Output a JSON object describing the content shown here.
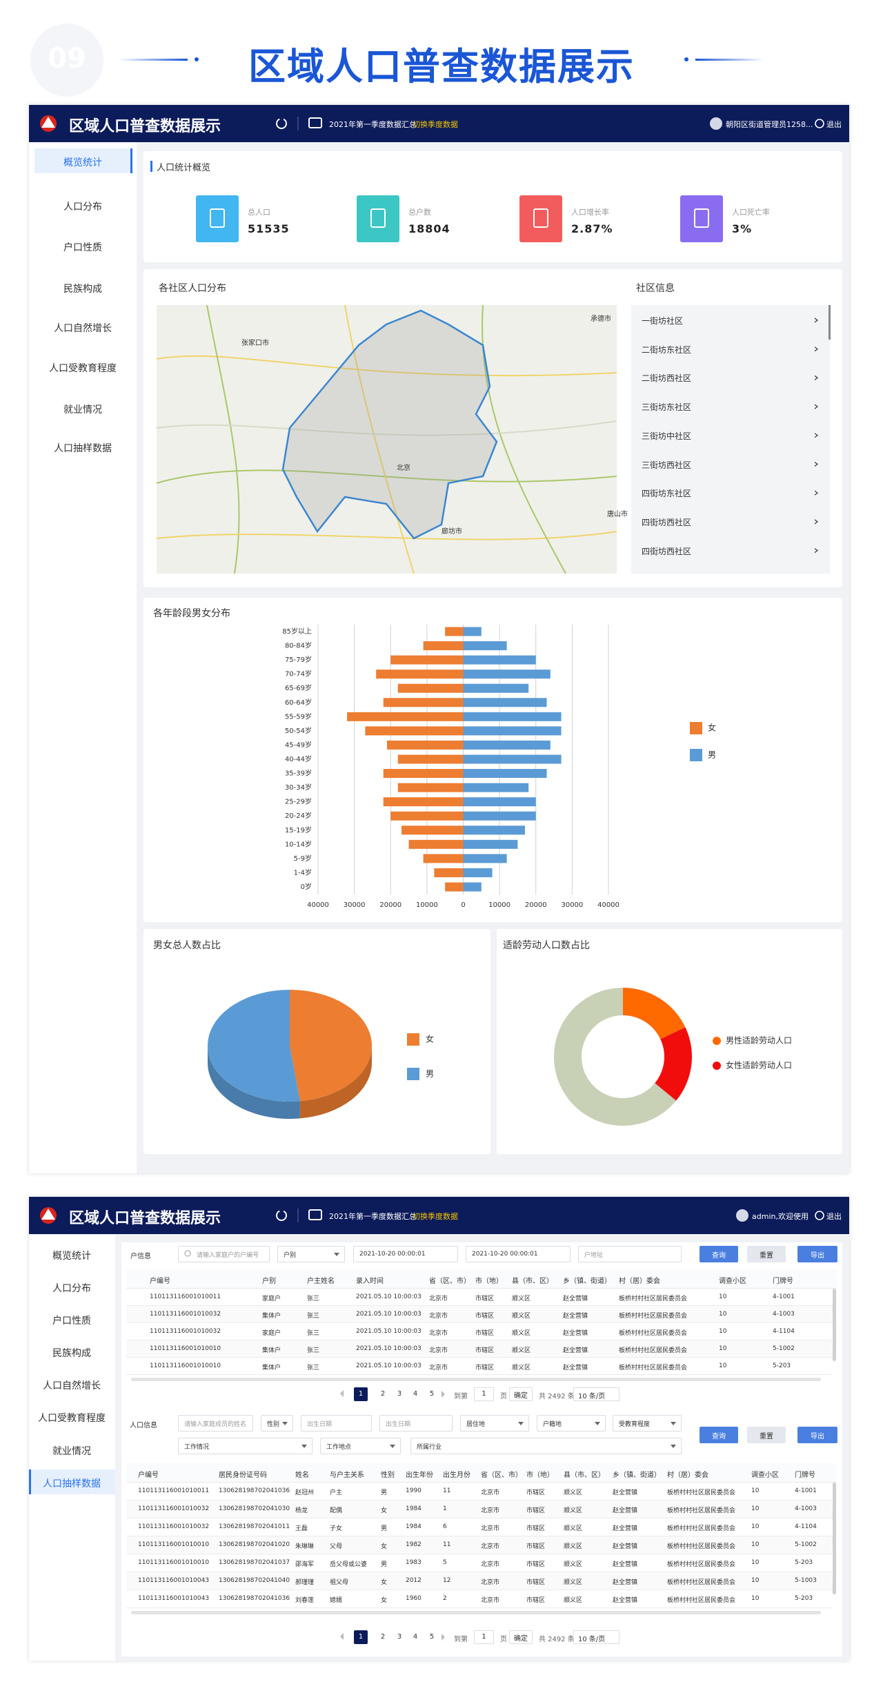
{
  "banner": {
    "number": "09",
    "title": "区域人口普查数据展示"
  },
  "dashboard": {
    "header": {
      "title": "区域人口普查数据展示",
      "period": "2021年第一季度数据汇总",
      "switch": "切换季度数据",
      "user": "朝阳区街道管理员1258...",
      "logout": "退出"
    },
    "menu": [
      "概览统计",
      "人口分布",
      "户口性质",
      "民族构成",
      "人口自然增长",
      "人口受教育程度",
      "就业情况",
      "人口抽样数据"
    ],
    "active": 0,
    "overview": {
      "title": "人口统计概览",
      "stats": [
        {
          "label": "总人口",
          "value": "51535",
          "color": "#41b6f0"
        },
        {
          "label": "总户数",
          "value": "18804",
          "color": "#3cc6c4"
        },
        {
          "label": "人口增长率",
          "value": "2.87%",
          "color": "#f25c5c"
        },
        {
          "label": "人口死亡率",
          "value": "3%",
          "color": "#8a6cf0"
        }
      ]
    },
    "map": {
      "title": "各社区人口分布",
      "labels": [
        "张家口市",
        "承德市",
        "北京",
        "廊坊市",
        "唐山市"
      ]
    },
    "community": {
      "title": "社区信息",
      "items": [
        "一街坊社区",
        "二街坊东社区",
        "二街坊西社区",
        "三街坊东社区",
        "三街坊中社区",
        "三街坊西社区",
        "四街坊东社区",
        "四街坊西社区",
        "四街坊西社区"
      ]
    }
  },
  "chart_data": [
    {
      "type": "pyramid",
      "title": "各年龄段男女分布",
      "categories": [
        "0岁",
        "1-4岁",
        "5-9岁",
        "10-14岁",
        "15-19岁",
        "20-24岁",
        "25-29岁",
        "30-34岁",
        "35-39岁",
        "40-44岁",
        "45-49岁",
        "50-54岁",
        "55-59岁",
        "60-64岁",
        "65-69岁",
        "70-74岁",
        "75-79岁",
        "80-84岁",
        "85岁以上"
      ],
      "series": [
        {
          "name": "女",
          "color": "#ed7d31",
          "values": [
            -5000,
            -8000,
            -11000,
            -15000,
            -17000,
            -20000,
            -22000,
            -18000,
            -22000,
            -18000,
            -21000,
            -27000,
            -32000,
            -22000,
            -18000,
            -24000,
            -20000,
            -11000,
            -5000
          ]
        },
        {
          "name": "男",
          "color": "#5b9bd5",
          "values": [
            5000,
            8000,
            12000,
            15000,
            17000,
            20000,
            20000,
            18000,
            23000,
            27000,
            24000,
            27000,
            27000,
            23000,
            18000,
            24000,
            20000,
            12000,
            5000
          ]
        }
      ],
      "xlim": [
        -40000,
        40000
      ],
      "xticks": [
        {
          "value": -40000,
          "label": "40000"
        },
        {
          "value": -30000,
          "label": "30000"
        },
        {
          "value": -20000,
          "label": "20000"
        },
        {
          "value": -10000,
          "label": "10000"
        },
        0,
        10000,
        20000,
        30000,
        40000
      ],
      "grid": true,
      "legend": "right"
    },
    {
      "type": "pie",
      "title": "男女总人数占比",
      "categories": [
        "女",
        "男"
      ],
      "values": [
        48,
        52
      ],
      "colors": [
        "#ed7d31",
        "#5b9bd5"
      ],
      "legend": "right"
    },
    {
      "type": "donut",
      "title": "适龄劳动人口数占比",
      "categories": [
        "男性适龄劳动人口",
        "女性适龄劳动人口",
        null
      ],
      "values": [
        18,
        18,
        64
      ],
      "colors": [
        "#ff6a00",
        "#f20d0d",
        "#c8d0b6"
      ],
      "legend": "right"
    }
  ],
  "detail": {
    "header": {
      "title": "区域人口普查数据展示",
      "period": "2021年第一季度数据汇总",
      "switch": "切换季度数据",
      "user": "admin,欢迎使用",
      "logout": "退出"
    },
    "menu": [
      "概览统计",
      "人口分布",
      "户口性质",
      "民族构成",
      "人口自然增长",
      "人口受教育程度",
      "就业情况",
      "人口抽样数据"
    ],
    "active": 7,
    "buttons": [
      "查询",
      "重置",
      "导出"
    ],
    "household": {
      "filters": {
        "label": "户信息",
        "keyword": "请输入家庭户的户编号",
        "type": "户别",
        "start": "2021-10-20 00:00:01",
        "end": "2021-10-20 00:00:01",
        "address": "户地址"
      },
      "table": {
        "columns": [
          "户编号",
          "户别",
          "户主姓名",
          "录入时间",
          "省（区、市）",
          "市（地）",
          "县（市、区）",
          "乡（镇、街道）",
          "村（居）委会",
          "调查小区",
          "门牌号"
        ],
        "rows": [
          [
            "110113116001010011",
            "家庭户",
            "张三",
            "2021.05.10 10:00:03",
            "北京市",
            "市辖区",
            "顺义区",
            "赵全营镇",
            "板桥村村社区居民委员会",
            "10",
            "4-1001"
          ],
          [
            "110113116001010032",
            "集体户",
            "张三",
            "2021.05.10 10:00:03",
            "北京市",
            "市辖区",
            "顺义区",
            "赵全营镇",
            "板桥村村社区居民委员会",
            "10",
            "4-1003"
          ],
          [
            "110113116001010032",
            "家庭户",
            "张三",
            "2021.05.10 10:00:03",
            "北京市",
            "市辖区",
            "顺义区",
            "赵全营镇",
            "板桥村村社区居民委员会",
            "10",
            "4-1104"
          ],
          [
            "110113116001010010",
            "集体户",
            "张三",
            "2021.05.10 10:00:03",
            "北京市",
            "市辖区",
            "顺义区",
            "赵全营镇",
            "板桥村村社区居民委员会",
            "10",
            "5-1002"
          ],
          [
            "110113116001010010",
            "集体户",
            "张三",
            "2021.05.10 10:00:03",
            "北京市",
            "市辖区",
            "顺义区",
            "赵全营镇",
            "板桥村村社区居民委员会",
            "10",
            "5-203"
          ]
        ]
      },
      "pagination": {
        "pages": [
          "1",
          "2",
          "3",
          "4",
          "5"
        ],
        "goto": "到第",
        "page": "1",
        "unit": "页",
        "confirm": "确定",
        "total": "共 2492 条",
        "size": "10 条/页"
      }
    },
    "person": {
      "filters": {
        "label": "人口信息",
        "name": "请输入家庭成员的姓名",
        "gender": "性别",
        "birth_start": "出生日期",
        "birth_end": "出生日期",
        "residence": "居住地",
        "registered": "户籍地",
        "education": "受教育程度",
        "work": "工作情况",
        "workplace": "工作地点",
        "industry": "所属行业"
      },
      "table": {
        "columns": [
          "户编号",
          "居民身份证号码",
          "姓名",
          "与户主关系",
          "性别",
          "出生年份",
          "出生月份",
          "省（区、市）",
          "市（地）",
          "县（市、区）",
          "乡（镇、街道）",
          "村（居）委会",
          "调查小区",
          "门牌号"
        ],
        "rows": [
          [
            "110113116001010011",
            "130628198702041036",
            "赵冠州",
            "户主",
            "男",
            "1990",
            "11",
            "北京市",
            "市辖区",
            "顺义区",
            "赵全营镇",
            "板桥村村社区居民委员会",
            "10",
            "4-1001"
          ],
          [
            "110113116001010032",
            "130628198702041030",
            "杨龙",
            "配偶",
            "女",
            "1984",
            "1",
            "北京市",
            "市辖区",
            "顺义区",
            "赵全营镇",
            "板桥村村社区居民委员会",
            "10",
            "4-1003"
          ],
          [
            "110113116001010032",
            "130628198702041011",
            "王磊",
            "子女",
            "男",
            "1984",
            "6",
            "北京市",
            "市辖区",
            "顺义区",
            "赵全营镇",
            "板桥村村社区居民委员会",
            "10",
            "4-1104"
          ],
          [
            "110113116001010010",
            "130628198702041020",
            "朱琳琳",
            "父母",
            "女",
            "1982",
            "11",
            "北京市",
            "市辖区",
            "顺义区",
            "赵全营镇",
            "板桥村村社区居民委员会",
            "10",
            "5-1002"
          ],
          [
            "110113116001010010",
            "130628198702041037",
            "邵海军",
            "岳父母或公婆",
            "男",
            "1983",
            "5",
            "北京市",
            "市辖区",
            "顺义区",
            "赵全营镇",
            "板桥村村社区居民委员会",
            "10",
            "5-203"
          ],
          [
            "110113116001010043",
            "130628198702041040",
            "郝瑾瑾",
            "祖父母",
            "女",
            "2012",
            "12",
            "北京市",
            "市辖区",
            "顺义区",
            "赵全营镇",
            "板桥村村社区居民委员会",
            "10",
            "5-1003"
          ],
          [
            "110113116001010043",
            "130628198702041036",
            "刘春莲",
            "媳婿",
            "女",
            "1960",
            "2",
            "北京市",
            "市辖区",
            "顺义区",
            "赵全营镇",
            "板桥村村社区居民委员会",
            "10",
            "5-203"
          ]
        ]
      },
      "pagination": {
        "pages": [
          "1",
          "2",
          "3",
          "4",
          "5"
        ],
        "goto": "到第",
        "page": "1",
        "unit": "页",
        "confirm": "确定",
        "total": "共 2492 条",
        "size": "10 条/页"
      }
    }
  }
}
